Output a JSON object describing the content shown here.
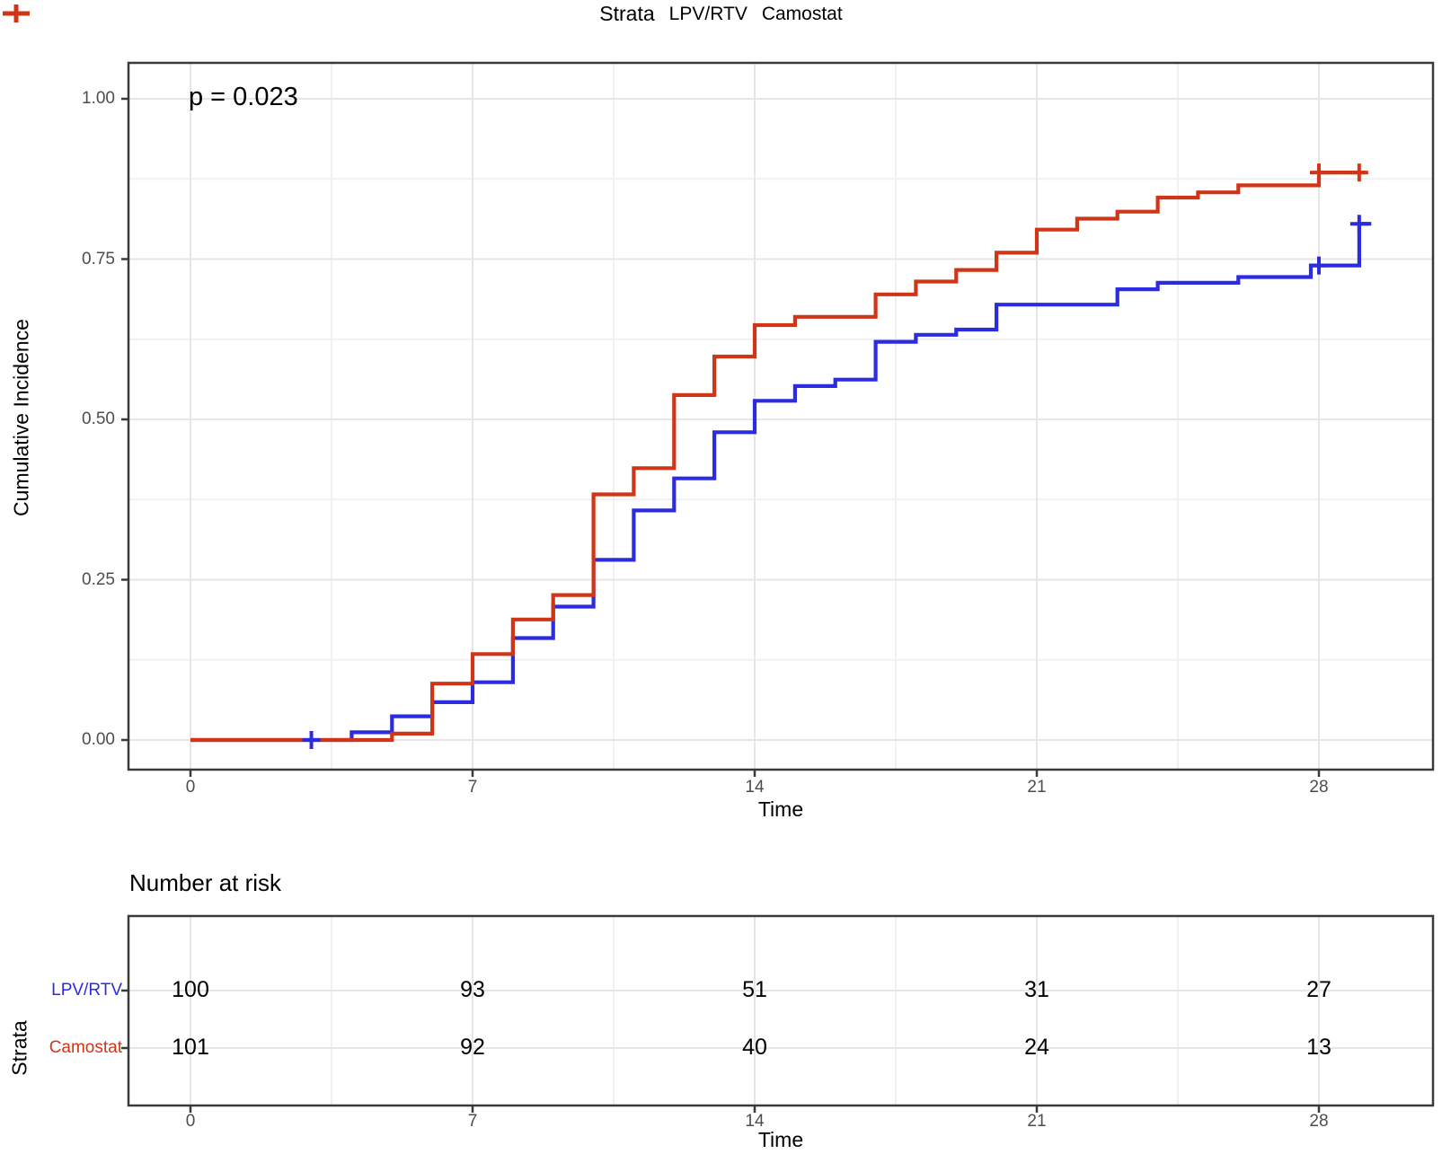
{
  "colors": {
    "lpv": "#2B2BDF",
    "camostat": "#D13517",
    "grid_major": "#E6E6E6",
    "grid_minor": "#F1F1F1",
    "panel_border": "#3A3A3A",
    "tick_text": "#4D4D4D",
    "text": "#000000"
  },
  "legend": {
    "title": "Strata",
    "items": [
      {
        "label": "LPV/RTV",
        "color": "#2B2BDF"
      },
      {
        "label": "Camostat",
        "color": "#D13517"
      }
    ]
  },
  "chart_data": {
    "type": "line",
    "subtype": "step-cumulative-incidence",
    "p_label": "p = 0.023",
    "xlabel": "Time",
    "ylabel": "Cumulative Incidence",
    "xlim": [
      -1.5,
      30.8
    ],
    "ylim": [
      -0.04,
      1.05
    ],
    "x_ticks": [
      0,
      7,
      14,
      21,
      28
    ],
    "y_ticks": [
      {
        "value": 0.0,
        "label": "0.00"
      },
      {
        "value": 0.25,
        "label": "0.25"
      },
      {
        "value": 0.5,
        "label": "0.50"
      },
      {
        "value": 0.75,
        "label": "0.75"
      },
      {
        "value": 1.0,
        "label": "1.00"
      }
    ],
    "grid": true,
    "legend_position": "top",
    "series": [
      {
        "name": "LPV/RTV",
        "color": "#2B2BDF",
        "steps": [
          [
            0,
            0.0
          ],
          [
            4,
            0.012
          ],
          [
            5,
            0.037
          ],
          [
            6,
            0.059
          ],
          [
            7,
            0.09
          ],
          [
            8,
            0.159
          ],
          [
            9,
            0.208
          ],
          [
            10,
            0.281
          ],
          [
            11,
            0.358
          ],
          [
            12,
            0.408
          ],
          [
            13,
            0.48
          ],
          [
            14,
            0.529
          ],
          [
            15,
            0.552
          ],
          [
            16,
            0.562
          ],
          [
            17,
            0.621
          ],
          [
            18,
            0.632
          ],
          [
            19,
            0.64
          ],
          [
            20,
            0.679
          ],
          [
            23,
            0.703
          ],
          [
            24,
            0.713
          ],
          [
            26,
            0.722
          ],
          [
            27.8,
            0.74
          ],
          [
            29,
            0.805
          ]
        ],
        "end": 29.3,
        "censors": [
          [
            3,
            0.0
          ],
          [
            28,
            0.74
          ],
          [
            29,
            0.805
          ]
        ]
      },
      {
        "name": "Camostat",
        "color": "#D13517",
        "steps": [
          [
            0,
            0.0
          ],
          [
            5,
            0.01
          ],
          [
            6,
            0.088
          ],
          [
            7,
            0.134
          ],
          [
            8,
            0.188
          ],
          [
            9,
            0.226
          ],
          [
            10,
            0.383
          ],
          [
            11,
            0.424
          ],
          [
            12,
            0.538
          ],
          [
            13,
            0.598
          ],
          [
            14,
            0.647
          ],
          [
            15,
            0.66
          ],
          [
            17,
            0.695
          ],
          [
            18,
            0.715
          ],
          [
            19,
            0.733
          ],
          [
            20,
            0.76
          ],
          [
            21,
            0.796
          ],
          [
            22,
            0.813
          ],
          [
            23,
            0.824
          ],
          [
            24,
            0.846
          ],
          [
            25,
            0.854
          ],
          [
            26,
            0.865
          ],
          [
            28,
            0.885
          ]
        ],
        "end": 29.15,
        "censors": [
          [
            28,
            0.885
          ],
          [
            29,
            0.885
          ]
        ]
      }
    ]
  },
  "risk_table": {
    "title": "Number at risk",
    "axis_label": "Strata",
    "xlabel": "Time",
    "x_ticks": [
      0,
      7,
      14,
      21,
      28
    ],
    "rows": [
      {
        "label": "LPV/RTV",
        "color": "#2B2BDF",
        "counts": [
          100,
          93,
          51,
          31,
          27
        ]
      },
      {
        "label": "Camostat",
        "color": "#D13517",
        "counts": [
          101,
          92,
          40,
          24,
          13
        ]
      }
    ]
  }
}
